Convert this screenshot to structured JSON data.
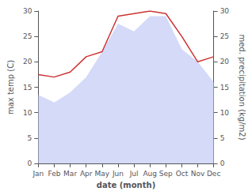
{
  "chart_data": {
    "type": "line",
    "categories": [
      "Jan",
      "Feb",
      "Mar",
      "Apr",
      "May",
      "Jun",
      "Jul",
      "Aug",
      "Sep",
      "Oct",
      "Nov",
      "Dec"
    ],
    "series": [
      {
        "type": "area",
        "color": "#c5cef5",
        "values": [
          13.5,
          12.0,
          14.0,
          17.0,
          22.0,
          27.5,
          26.0,
          29.0,
          29.0,
          22.5,
          20.0,
          16.0
        ]
      },
      {
        "type": "line",
        "color": "#cc3333",
        "axis": "y2",
        "values": [
          17.5,
          17.0,
          18.0,
          21.0,
          22.0,
          29.0,
          29.5,
          30.0,
          29.5,
          25.0,
          20.0,
          21.0
        ]
      }
    ],
    "xlabel": "date (month)",
    "ylabel": "max temp (C)",
    "y2label": "med. precipitation (kg/m2)",
    "ylim": [
      0,
      30
    ],
    "yticks": [
      0,
      5,
      10,
      15,
      20,
      25,
      30
    ],
    "y2lim": [
      0,
      30
    ],
    "y2ticks": [
      0,
      5,
      10,
      15,
      20,
      25,
      30
    ],
    "grid": false
  }
}
